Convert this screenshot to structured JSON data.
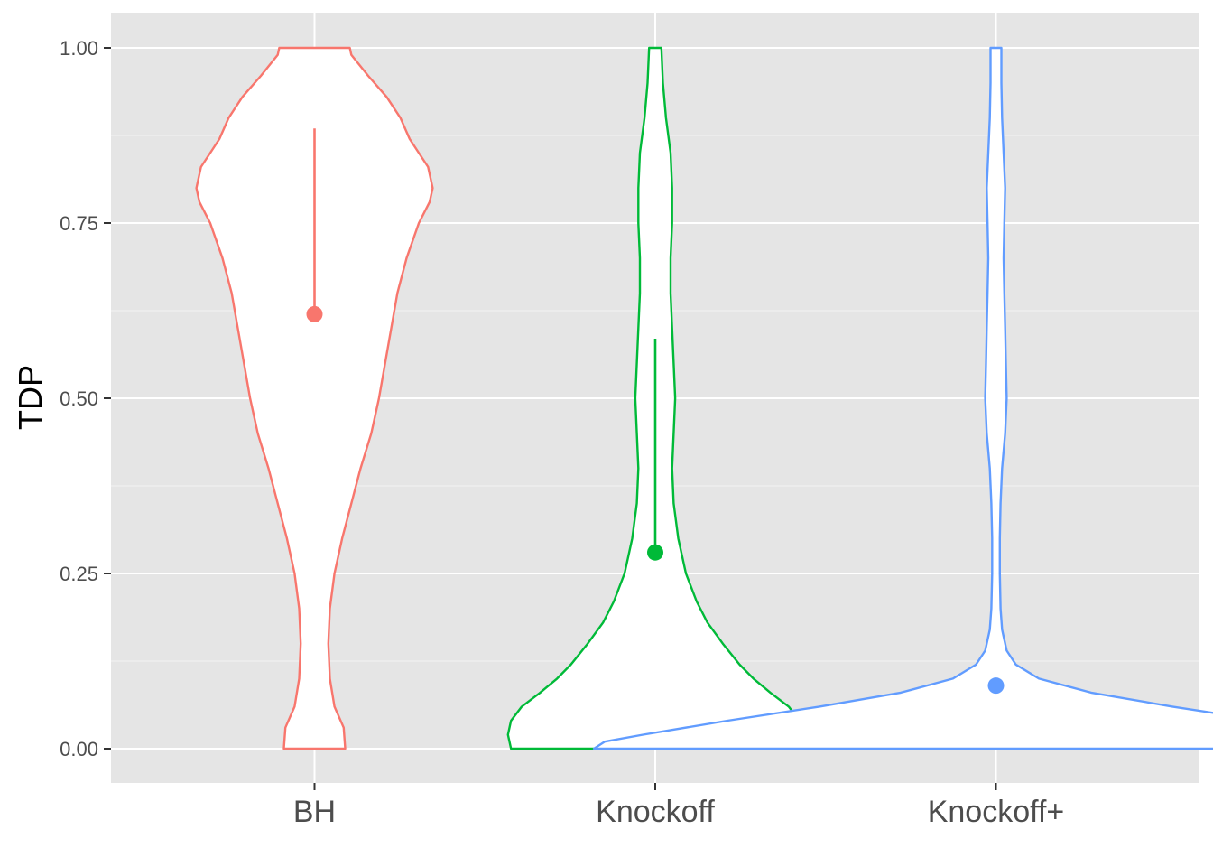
{
  "chart_data": {
    "type": "violin",
    "title": "",
    "xlabel": "",
    "ylabel": "TDP",
    "ylim": [
      -0.05,
      1.05
    ],
    "y_ticks": [
      0.0,
      0.25,
      0.5,
      0.75,
      1.0
    ],
    "y_tick_labels": [
      "0.00",
      "0.25",
      "0.50",
      "0.75",
      "1.00"
    ],
    "grid": true,
    "legend": "none",
    "categories": [
      "BH",
      "Knockoff",
      "Knockoff+"
    ],
    "series": [
      {
        "category": "BH",
        "color": "#F8766D",
        "mean": 0.62,
        "sd_upper": 0.885,
        "sd_lower": 0.62,
        "density_profile": [
          [
            0.0,
            0.2
          ],
          [
            0.03,
            0.19
          ],
          [
            0.06,
            0.13
          ],
          [
            0.1,
            0.1
          ],
          [
            0.15,
            0.09
          ],
          [
            0.2,
            0.1
          ],
          [
            0.25,
            0.13
          ],
          [
            0.3,
            0.18
          ],
          [
            0.35,
            0.24
          ],
          [
            0.4,
            0.3
          ],
          [
            0.45,
            0.37
          ],
          [
            0.5,
            0.42
          ],
          [
            0.55,
            0.46
          ],
          [
            0.6,
            0.5
          ],
          [
            0.65,
            0.54
          ],
          [
            0.7,
            0.6
          ],
          [
            0.75,
            0.68
          ],
          [
            0.78,
            0.75
          ],
          [
            0.8,
            0.77
          ],
          [
            0.83,
            0.74
          ],
          [
            0.87,
            0.62
          ],
          [
            0.9,
            0.56
          ],
          [
            0.93,
            0.47
          ],
          [
            0.96,
            0.35
          ],
          [
            0.99,
            0.24
          ],
          [
            1.0,
            0.23
          ]
        ]
      },
      {
        "category": "Knockoff",
        "color": "#00BA38",
        "mean": 0.28,
        "sd_upper": 0.585,
        "sd_lower": 0.28,
        "density_profile": [
          [
            0.0,
            0.94
          ],
          [
            0.02,
            0.96
          ],
          [
            0.04,
            0.94
          ],
          [
            0.06,
            0.87
          ],
          [
            0.08,
            0.75
          ],
          [
            0.1,
            0.64
          ],
          [
            0.12,
            0.55
          ],
          [
            0.15,
            0.44
          ],
          [
            0.18,
            0.34
          ],
          [
            0.21,
            0.27
          ],
          [
            0.25,
            0.2
          ],
          [
            0.3,
            0.15
          ],
          [
            0.35,
            0.12
          ],
          [
            0.4,
            0.11
          ],
          [
            0.45,
            0.12
          ],
          [
            0.5,
            0.13
          ],
          [
            0.55,
            0.12
          ],
          [
            0.6,
            0.11
          ],
          [
            0.65,
            0.1
          ],
          [
            0.7,
            0.1
          ],
          [
            0.75,
            0.11
          ],
          [
            0.8,
            0.11
          ],
          [
            0.85,
            0.1
          ],
          [
            0.9,
            0.07
          ],
          [
            0.95,
            0.05
          ],
          [
            1.0,
            0.04
          ]
        ]
      },
      {
        "category": "Knockoff+",
        "color": "#619CFF",
        "mean": 0.09,
        "sd_upper": 0.09,
        "sd_lower": 0.09,
        "density_profile": [
          [
            0.0,
            2.62
          ],
          [
            0.01,
            2.55
          ],
          [
            0.02,
            2.3
          ],
          [
            0.04,
            1.75
          ],
          [
            0.06,
            1.15
          ],
          [
            0.08,
            0.62
          ],
          [
            0.1,
            0.28
          ],
          [
            0.12,
            0.13
          ],
          [
            0.14,
            0.07
          ],
          [
            0.17,
            0.04
          ],
          [
            0.2,
            0.03
          ],
          [
            0.25,
            0.025
          ],
          [
            0.3,
            0.025
          ],
          [
            0.35,
            0.03
          ],
          [
            0.4,
            0.04
          ],
          [
            0.45,
            0.06
          ],
          [
            0.5,
            0.07
          ],
          [
            0.55,
            0.065
          ],
          [
            0.6,
            0.06
          ],
          [
            0.65,
            0.055
          ],
          [
            0.7,
            0.05
          ],
          [
            0.75,
            0.055
          ],
          [
            0.8,
            0.06
          ],
          [
            0.85,
            0.05
          ],
          [
            0.9,
            0.04
          ],
          [
            0.95,
            0.035
          ],
          [
            1.0,
            0.035
          ]
        ]
      }
    ]
  },
  "colors": {
    "panel_background": "#E5E5E5",
    "grid_major": "#FFFFFF",
    "grid_minor": "#F2F2F2",
    "tick_text": "#4D4D4D",
    "tick_mark": "#333333"
  }
}
